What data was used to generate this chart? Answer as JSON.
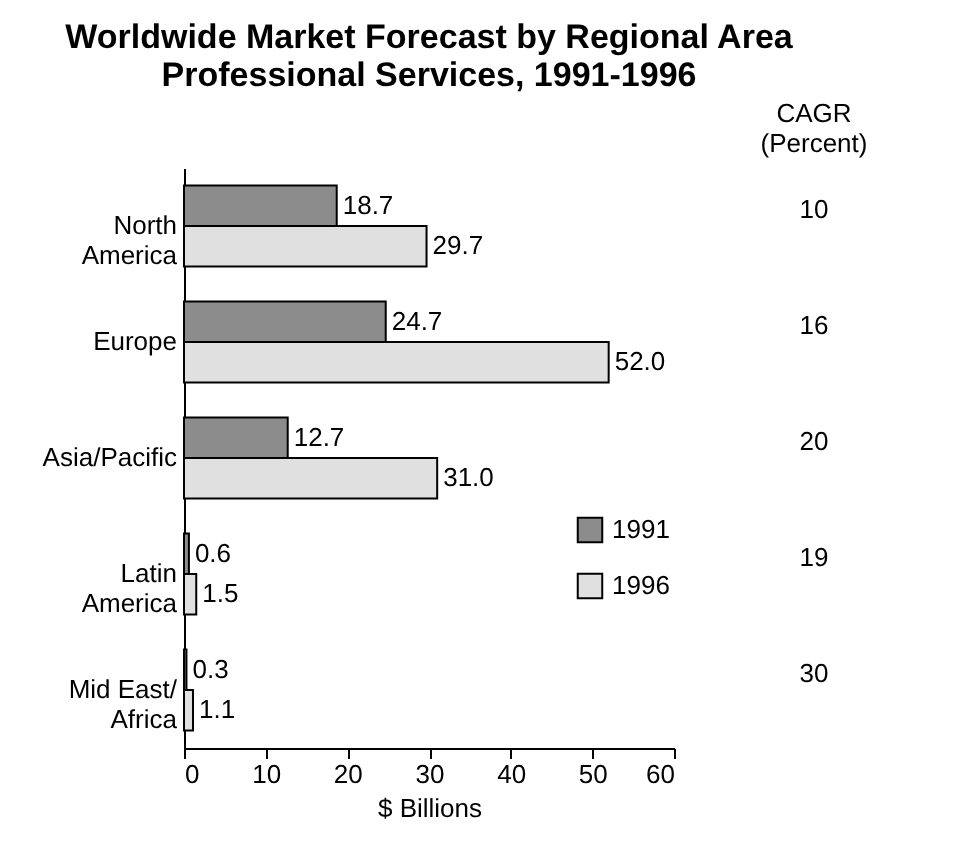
{
  "chart_data": {
    "type": "bar",
    "orientation": "horizontal",
    "title": "Worldwide Market Forecast by Regional Area\nProfessional Services, 1991-1996",
    "categories": [
      "North\nAmerica",
      "Europe",
      "Asia/Pacific",
      "Latin\nAmerica",
      "Mid East/\nAfrica"
    ],
    "series": [
      {
        "name": "1991",
        "color": "#8c8c8c",
        "values": [
          18.7,
          24.7,
          12.7,
          0.6,
          0.3
        ],
        "value_labels": [
          "18.7",
          "24.7",
          "12.7",
          "0.6",
          "0.3"
        ]
      },
      {
        "name": "1996",
        "color": "#e0e0e0",
        "values": [
          29.7,
          52.0,
          31.0,
          1.5,
          1.1
        ],
        "value_labels": [
          "29.7",
          "52.0",
          "31.0",
          "1.5",
          "1.1"
        ]
      }
    ],
    "xlabel": "$ Billions",
    "xlim": [
      0,
      60
    ],
    "xticks": [
      0,
      10,
      20,
      30,
      40,
      50,
      60
    ],
    "legend": "bottom right",
    "grid": false,
    "annotations": [
      "CAGR\n(Percent)",
      "10",
      "16",
      "20",
      "19",
      "30"
    ]
  }
}
